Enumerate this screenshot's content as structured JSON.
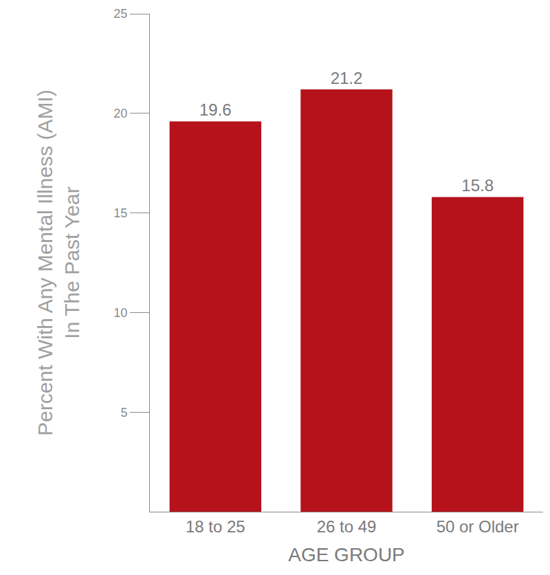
{
  "chart_data": {
    "type": "bar",
    "categories": [
      "18 to 25",
      "26 to 49",
      "50 or Older"
    ],
    "values": [
      19.6,
      21.2,
      15.8
    ],
    "color": "#b5121b",
    "xlabel": "AGE GROUP",
    "ylabel": "Percent With Any Mental Illness (AMI)\nIn The Past Year",
    "ylim": [
      0,
      25
    ],
    "yticks": [
      5,
      10,
      15,
      20,
      25
    ],
    "grid": false,
    "data_labels": true
  }
}
